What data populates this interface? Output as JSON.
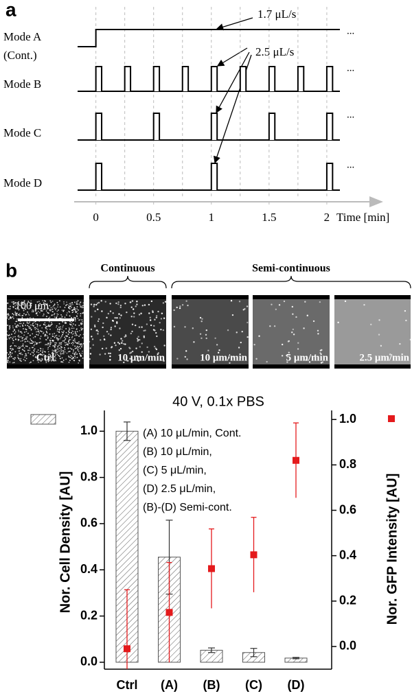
{
  "panels": [
    "a",
    "b"
  ],
  "chart_data": [
    {
      "type": "timing",
      "xlabel": "Time [min]",
      "xlim": [
        -0.2,
        2.5
      ],
      "xticks": [
        0,
        0.5,
        1,
        1.5,
        2
      ],
      "pulse_width": 0.05,
      "continuation": "...",
      "annotations": [
        "1.7 μL/s",
        "2.5 μL/s"
      ],
      "series": [
        {
          "name": "Mode A",
          "note": "(Cont.)",
          "continuous": true,
          "values": [
            0
          ]
        },
        {
          "name": "Mode B",
          "values": [
            0,
            0.25,
            0.5,
            0.75,
            1,
            1.25,
            1.5,
            1.75,
            2
          ]
        },
        {
          "name": "Mode C",
          "values": [
            0,
            0.5,
            1,
            1.5,
            2
          ]
        },
        {
          "name": "Mode D",
          "values": [
            0,
            1,
            2
          ]
        }
      ]
    },
    {
      "type": "bar",
      "title": "40 V, 0.1x PBS",
      "ylabel": "Nor. Cell Density [AU]",
      "y2label": "Nor. GFP Intensity [AU]",
      "categories": [
        "Ctrl",
        "(A)",
        "(B)",
        "(C)",
        "(D)"
      ],
      "ylim": [
        -0.03,
        1.09
      ],
      "yticks": [
        {
          "value": 0,
          "label": "0.0"
        },
        0.2,
        0.4,
        0.6,
        0.8,
        {
          "value": 1,
          "label": "1.0"
        }
      ],
      "y2lim": [
        -0.1,
        1.04
      ],
      "y2ticks": [
        {
          "value": 0,
          "label": "0.0"
        },
        0.2,
        0.4,
        0.6,
        0.8,
        {
          "value": 1,
          "label": "1.0"
        }
      ],
      "notes": [
        "(A) 10 μL/min, Cont.",
        "(B) 10 μL/min,",
        "(C) 5 μL/min,",
        "(D) 2.5 μL/min,",
        "(B)-(D) Semi-cont."
      ],
      "series": [
        {
          "color": "#555555",
          "hatch": true,
          "values": [
            1.0,
            0.455,
            0.052,
            0.042,
            0.018
          ],
          "errors": [
            0.04,
            0.16,
            0.01,
            0.018,
            0.003
          ]
        },
        {
          "color": "#e41a1c",
          "axis": "y2",
          "marker": "square",
          "values": [
            -0.01,
            0.15,
            0.343,
            0.404,
            0.82
          ],
          "errors": [
            0.26,
            0.22,
            0.175,
            0.165,
            0.165
          ]
        }
      ]
    }
  ],
  "images": {
    "headers": [
      "Continuous",
      "Semi-continuous"
    ],
    "labels": [
      "Ctrl",
      "10 μm/min",
      "10 μm/min",
      "5 μm/min",
      "2.5 μm/min"
    ],
    "scale_bar": "100 μm"
  }
}
